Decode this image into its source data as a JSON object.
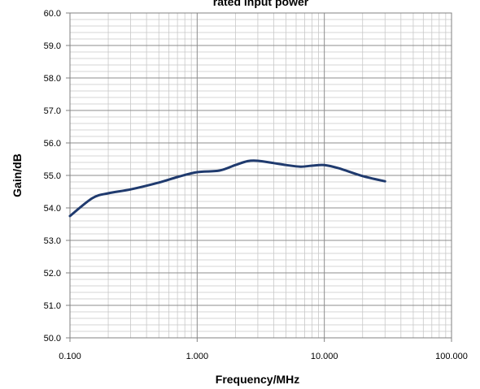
{
  "chart_data": {
    "type": "line",
    "title": "rated input power",
    "xlabel": "Frequency/MHz",
    "ylabel": "Gain/dB",
    "x_scale": "log",
    "xlim": [
      0.1,
      100
    ],
    "ylim": [
      50,
      60
    ],
    "x_ticks": [
      "0.100",
      "1.000",
      "10.000",
      "100.000"
    ],
    "y_ticks": [
      "50.0",
      "51.0",
      "52.0",
      "53.0",
      "54.0",
      "55.0",
      "56.0",
      "57.0",
      "58.0",
      "59.0",
      "60.0"
    ],
    "grid": true,
    "legend": "none",
    "series": [
      {
        "color": "#1f3a6e",
        "x": [
          0.1,
          0.15,
          0.2,
          0.3,
          0.5,
          0.7,
          1.0,
          1.5,
          2.0,
          2.5,
          3.0,
          4.0,
          5.0,
          6.5,
          8.0,
          10.0,
          13.0,
          20.0,
          30.0
        ],
        "y": [
          53.75,
          54.3,
          54.45,
          54.57,
          54.78,
          54.95,
          55.1,
          55.15,
          55.32,
          55.44,
          55.45,
          55.38,
          55.32,
          55.27,
          55.3,
          55.32,
          55.22,
          54.98,
          54.82
        ]
      }
    ]
  }
}
